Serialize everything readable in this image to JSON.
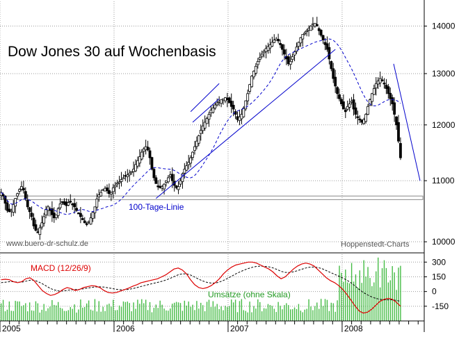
{
  "chart_data": [
    {
      "type": "candlestick",
      "title": "Dow Jones 30 auf Wochenbasis",
      "y_ticks": [
        10000,
        11000,
        12000,
        13000,
        14000
      ],
      "y_tick_labels": [
        "10000",
        "11000",
        "12000",
        "13000",
        "14000"
      ],
      "ylim": [
        9850,
        14550
      ],
      "y_scale": "log",
      "x_ticks": [
        "2005",
        "2006",
        "2007",
        "2008"
      ],
      "xlim_years": [
        2005.0,
        2008.72
      ],
      "grid": true,
      "annotations": {
        "ma_label": "100-Tage-Linie",
        "watermark_left": "www.buero-dr-schulz.de",
        "watermark_right": "Hoppenstedt-Charts"
      },
      "colors": {
        "candles": "#000000",
        "ma_line": "#0000cc",
        "trendlines": "#0000cc",
        "support_band": "#888888"
      },
      "weekly_closes": [
        10800,
        10740,
        10620,
        10500,
        10480,
        10500,
        10600,
        10700,
        10780,
        10850,
        10900,
        10840,
        10700,
        10560,
        10480,
        10400,
        10250,
        10180,
        10150,
        10220,
        10300,
        10400,
        10520,
        10560,
        10500,
        10430,
        10380,
        10430,
        10530,
        10610,
        10640,
        10600,
        10580,
        10630,
        10650,
        10600,
        10560,
        10500,
        10450,
        10400,
        10350,
        10300,
        10280,
        10320,
        10380,
        10470,
        10560,
        10690,
        10760,
        10800,
        10850,
        10870,
        10830,
        10780,
        10800,
        10880,
        10920,
        10960,
        10980,
        11020,
        11050,
        11080,
        11100,
        11130,
        11160,
        11200,
        11280,
        11350,
        11420,
        11500,
        11560,
        11600,
        11540,
        11400,
        11200,
        11050,
        10950,
        10900,
        10880,
        10900,
        10940,
        11000,
        11050,
        11100,
        11000,
        10920,
        10880,
        10900,
        11000,
        11120,
        11200,
        11260,
        11320,
        11400,
        11500,
        11600,
        11700,
        11800,
        11900,
        11980,
        12050,
        12120,
        12200,
        12280,
        12320,
        12380,
        12420,
        12450,
        12480,
        12500,
        12520,
        12480,
        12420,
        12350,
        12300,
        12200,
        12100,
        12150,
        12200,
        12320,
        12460,
        12600,
        12780,
        12950,
        13050,
        13150,
        13250,
        13330,
        13400,
        13460,
        13520,
        13560,
        13600,
        13650,
        13700,
        13720,
        13680,
        13600,
        13500,
        13400,
        13300,
        13200,
        13250,
        13350,
        13450,
        13550,
        13650,
        13750,
        13820,
        13850,
        13900,
        13950,
        14000,
        14050,
        14060,
        14000,
        13900,
        13800,
        13700,
        13600,
        13500,
        13300,
        13100,
        12900,
        12750,
        12600,
        12500,
        12400,
        12300,
        12250,
        12350,
        12400,
        12450,
        12300,
        12200,
        12150,
        12100,
        12050,
        12100,
        12200,
        12350,
        12480,
        12600,
        12700,
        12800,
        12850,
        12900,
        12850,
        12800,
        12700,
        12600,
        12500,
        12400,
        12200,
        12000,
        11700,
        11400
      ],
      "series": [
        {
          "values": "weekly_closes"
        },
        {
          "name": "100-Tage-Linie",
          "type": "line",
          "style": "dashed"
        }
      ],
      "support_band": [
        10680,
        10740
      ]
    },
    {
      "type": "line",
      "panel": "indicator",
      "title": "MACD (12/26/9)",
      "y_ticks": [
        300,
        150,
        0,
        -150
      ],
      "y_tick_labels": [
        "300",
        "150",
        "0",
        "-150"
      ],
      "ylim": [
        -300,
        380
      ],
      "grid": true,
      "colors": {
        "macd": "#dd0000",
        "signal": "#000000"
      },
      "macd_values": [
        120,
        125,
        120,
        100,
        90,
        100,
        130,
        140,
        110,
        60,
        10,
        -20,
        -40,
        -30,
        -10,
        20,
        40,
        30,
        10,
        20,
        40,
        50,
        60,
        55,
        40,
        10,
        -10,
        -15,
        -10,
        5,
        20,
        35,
        55,
        70,
        90,
        100,
        110,
        120,
        130,
        150,
        170,
        200,
        230,
        240,
        220,
        180,
        120,
        70,
        40,
        30,
        40,
        60,
        90,
        130,
        180,
        220,
        250,
        270,
        280,
        290,
        300,
        300,
        290,
        270,
        250,
        230,
        200,
        160,
        130,
        150,
        190,
        230,
        260,
        280,
        290,
        280,
        260,
        220,
        180,
        140,
        110,
        90,
        60,
        20,
        -30,
        -90,
        -150,
        -200,
        -220,
        -210,
        -180,
        -140,
        -100,
        -80,
        -70,
        -80,
        -110,
        -150
      ],
      "signal_values": [
        90,
        95,
        100,
        100,
        95,
        95,
        105,
        115,
        115,
        100,
        80,
        55,
        30,
        15,
        5,
        5,
        12,
        18,
        20,
        22,
        28,
        35,
        42,
        47,
        48,
        45,
        38,
        30,
        22,
        18,
        18,
        22,
        30,
        40,
        52,
        63,
        73,
        83,
        93,
        104,
        117,
        133,
        152,
        170,
        180,
        180,
        168,
        148,
        126,
        107,
        93,
        86,
        87,
        96,
        113,
        134,
        157,
        180,
        200,
        218,
        234,
        247,
        256,
        259,
        257,
        252,
        241,
        225,
        206,
        195,
        194,
        201,
        213,
        227,
        240,
        248,
        250,
        244,
        232,
        213,
        194,
        175,
        157,
        137,
        115,
        88,
        55,
        20,
        -10,
        -35,
        -55,
        -70,
        -80,
        -85,
        -85,
        -85,
        -90,
        -100
      ],
      "series": [
        {
          "name": "MACD (12/26/9)",
          "values": "macd_values"
        },
        {
          "values": "signal_values",
          "style": "dashed"
        }
      ]
    },
    {
      "type": "bar",
      "panel": "indicator",
      "title": "Umsätze (ohne Skala)",
      "colors": {
        "bars": "#44bb44"
      }
    }
  ]
}
